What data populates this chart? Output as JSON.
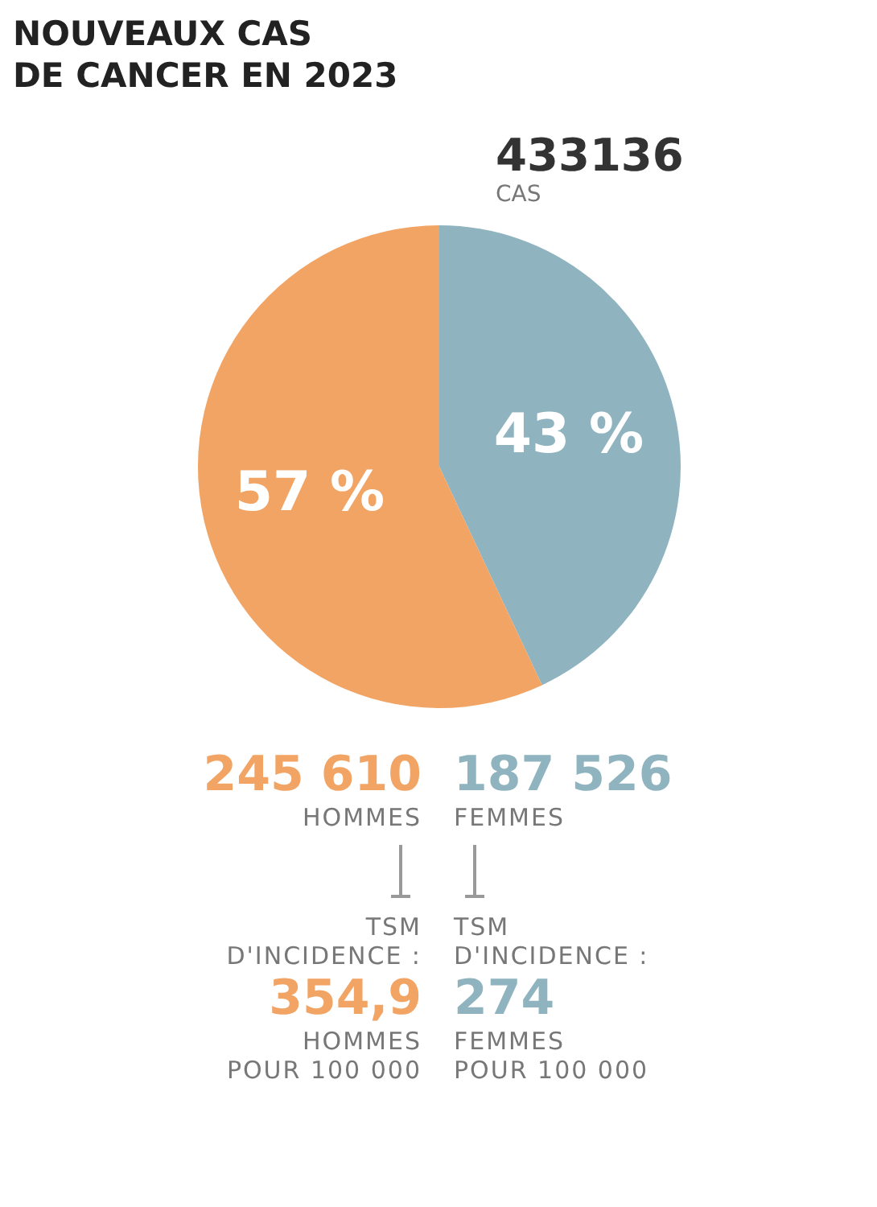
{
  "chart_data": {
    "type": "pie",
    "title": "NOUVEAUX CAS\nDE CANCER EN 2023",
    "categories": [
      null,
      null
    ],
    "values": [
      43,
      57
    ],
    "colors": [
      "#8fb4bf",
      "#f2a464"
    ],
    "value_labels": [
      "43 %",
      "57 %"
    ],
    "annotations": [
      "433136",
      "CAS",
      "245 610",
      "HOMMES",
      "187 526",
      "FEMMES",
      "TSM",
      "D'INCIDENCE :",
      "354,9",
      "HOMMES",
      "POUR 100 000",
      "TSM",
      "D'INCIDENCE :",
      "274",
      "FEMMES",
      "POUR 100 000"
    ]
  }
}
